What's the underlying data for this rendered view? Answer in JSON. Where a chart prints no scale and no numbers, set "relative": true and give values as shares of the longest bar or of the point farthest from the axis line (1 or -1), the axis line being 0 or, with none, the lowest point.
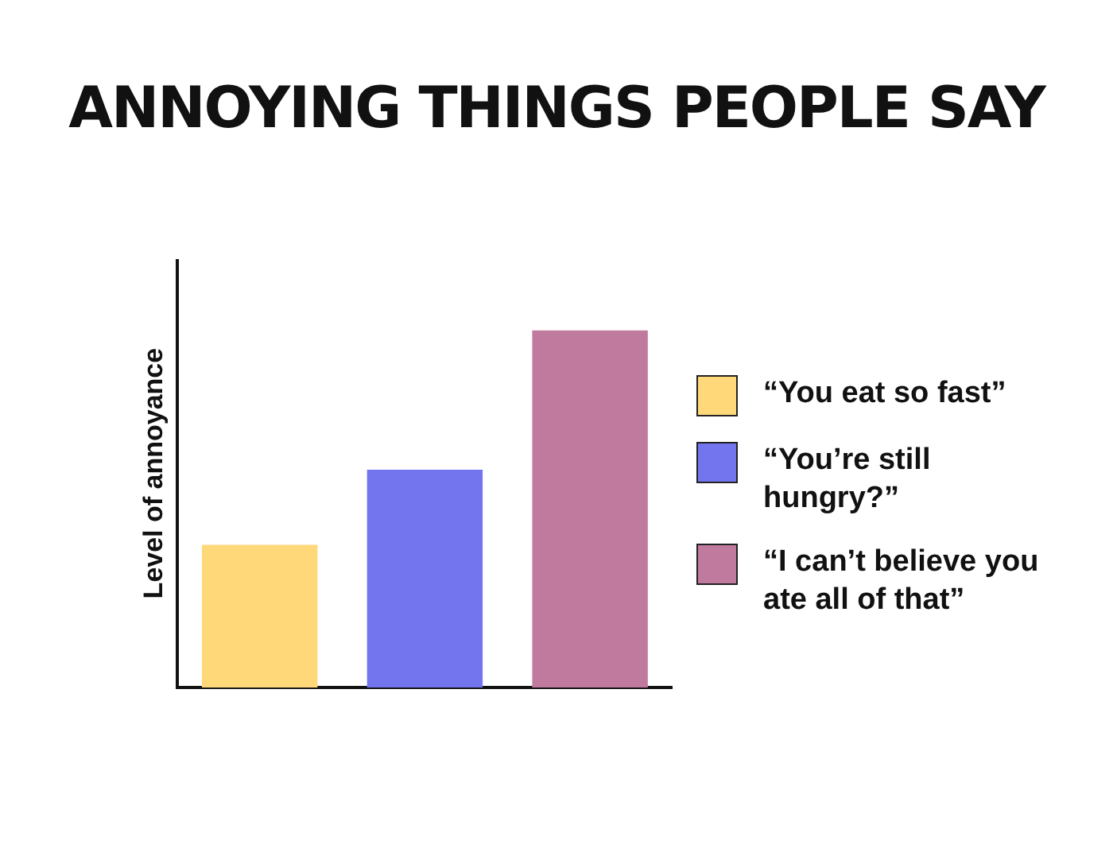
{
  "chart_data": {
    "type": "bar",
    "title": "ANNOYING THINGS PEOPLE SAY",
    "ylabel": "Level of annoyance",
    "relative": true,
    "categories": [
      null,
      null,
      null
    ],
    "legend": "right",
    "grid": false,
    "stacked": true,
    "series": [
      {
        "name": "“You eat so fast”",
        "color": "#ffd87a",
        "values": [
          0.4,
          null,
          null
        ]
      },
      {
        "name": "“You’re still hungry?”",
        "color": "#7275ee",
        "values": [
          null,
          0.61,
          null
        ]
      },
      {
        "name": "“I can’t believe you ate all of that”",
        "color": "#c07a9e",
        "values": [
          null,
          null,
          1
        ]
      }
    ]
  }
}
